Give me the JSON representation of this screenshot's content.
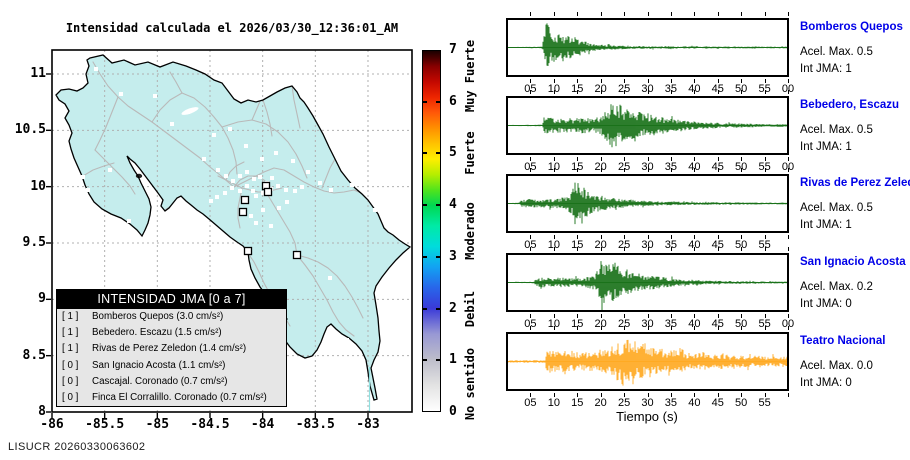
{
  "title": "Intensidad calculada el 2026/03/30_12:36:01_AM",
  "watermark": "LISUCR 20260330063602",
  "map": {
    "x_tick_labels": [
      "-86",
      "-85.5",
      "-85",
      "-84.5",
      "-84",
      "-83.5",
      "-83"
    ],
    "y_tick_labels": [
      "11",
      "10.5",
      "10",
      "9.5",
      "9",
      "8.5",
      "8"
    ],
    "legend": {
      "header": "INTENSIDAD JMA [0 a 7]",
      "items": [
        {
          "tag": "[ 1 ]",
          "text": "Bomberos Quepos (3.0 cm/s²)"
        },
        {
          "tag": "[ 1 ]",
          "text": "Bebedero. Escazu (1.5 cm/s²)"
        },
        {
          "tag": "[ 1 ]",
          "text": "Rivas de Perez Zeledon (1.4 cm/s²)"
        },
        {
          "tag": "[ 0 ]",
          "text": "San Ignacio Acosta (1.1 cm/s²)"
        },
        {
          "tag": "[ 0 ]",
          "text": "Cascajal. Coronado (0.7 cm/s²)"
        },
        {
          "tag": "[ 0 ]",
          "text": "Finca El Corralillo. Coronado (0.7 cm/s²)"
        }
      ]
    },
    "triggered_station_markers": [
      [
        266,
        186
      ],
      [
        268,
        192
      ],
      [
        245,
        200
      ],
      [
        243,
        212
      ],
      [
        248,
        251
      ],
      [
        297,
        255
      ]
    ],
    "station_markers": [
      [
        96,
        69
      ],
      [
        121,
        94
      ],
      [
        155,
        96
      ],
      [
        188,
        112
      ],
      [
        172,
        124
      ],
      [
        214,
        135
      ],
      [
        230,
        129
      ],
      [
        204,
        159
      ],
      [
        246,
        146
      ],
      [
        262,
        159
      ],
      [
        276,
        153
      ],
      [
        293,
        161
      ],
      [
        308,
        172
      ],
      [
        320,
        183
      ],
      [
        331,
        190
      ],
      [
        352,
        185
      ],
      [
        362,
        170
      ],
      [
        218,
        170
      ],
      [
        226,
        176
      ],
      [
        233,
        181
      ],
      [
        240,
        176
      ],
      [
        247,
        172
      ],
      [
        254,
        179
      ],
      [
        260,
        177
      ],
      [
        267,
        183
      ],
      [
        272,
        178
      ],
      [
        247,
        186
      ],
      [
        253,
        191
      ],
      [
        240,
        191
      ],
      [
        232,
        188
      ],
      [
        225,
        193
      ],
      [
        217,
        197
      ],
      [
        211,
        201
      ],
      [
        256,
        196
      ],
      [
        263,
        193
      ],
      [
        271,
        189
      ],
      [
        278,
        186
      ],
      [
        286,
        190
      ],
      [
        295,
        191
      ],
      [
        302,
        187
      ],
      [
        287,
        202
      ],
      [
        279,
        208
      ],
      [
        263,
        210
      ],
      [
        251,
        216
      ],
      [
        256,
        223
      ],
      [
        271,
        226
      ],
      [
        330,
        278
      ],
      [
        347,
        340
      ],
      [
        375,
        210
      ],
      [
        88,
        190
      ],
      [
        129,
        221
      ],
      [
        110,
        170
      ],
      [
        83,
        177
      ]
    ]
  },
  "colorbar": {
    "numbers": [
      {
        "label": "7",
        "v": 7
      },
      {
        "label": "6",
        "v": 6
      },
      {
        "label": "5",
        "v": 5
      },
      {
        "label": "4",
        "v": 4
      },
      {
        "label": "3",
        "v": 3
      },
      {
        "label": "2",
        "v": 2
      },
      {
        "label": "1",
        "v": 1
      },
      {
        "label": "0",
        "v": 0
      }
    ],
    "scale_labels": [
      {
        "text": "Muy Fuerte",
        "v": 6.5
      },
      {
        "text": "Fuerte",
        "v": 5
      },
      {
        "text": "Moderado",
        "v": 3.5
      },
      {
        "text": "Debil",
        "v": 2
      },
      {
        "text": "No sentido",
        "v": 0.55
      }
    ],
    "gradient_stops": [
      [
        0,
        "#ffffff"
      ],
      [
        0.5,
        "#e3e3e3"
      ],
      [
        1,
        "#bdbdca"
      ],
      [
        1.5,
        "#9898d4"
      ],
      [
        2,
        "#3a3ad8"
      ],
      [
        2.4,
        "#2866ea"
      ],
      [
        2.8,
        "#12a2f2"
      ],
      [
        3.2,
        "#00dcdc"
      ],
      [
        3.6,
        "#00eaa6"
      ],
      [
        4,
        "#00d852"
      ],
      [
        4.3,
        "#52e41c"
      ],
      [
        4.6,
        "#b6ee00"
      ],
      [
        4.9,
        "#ffee00"
      ],
      [
        5.2,
        "#ffc200"
      ],
      [
        5.5,
        "#ff8f00"
      ],
      [
        5.8,
        "#ff5808"
      ],
      [
        6.1,
        "#ee2600"
      ],
      [
        6.4,
        "#c40800"
      ],
      [
        6.7,
        "#880000"
      ],
      [
        6.85,
        "#4e0000"
      ],
      [
        7,
        "#1c0000"
      ]
    ]
  },
  "seismograms": {
    "xlabel": "Tiempo (s)",
    "trace_colors": {
      "green": "#156f15",
      "orange": "#ffa81e"
    },
    "panels": [
      {
        "name": "Bomberos Quepos",
        "acel": "Acel. Max. 0.5",
        "jma": "Int JMA: 1",
        "color": "green",
        "ticks": [
          "05",
          "10",
          "15",
          "20",
          "25",
          "30",
          "35",
          "40",
          "45",
          "50",
          "55",
          "00"
        ]
      },
      {
        "name": "Bebedero, Escazu",
        "acel": "Acel. Max. 0.5",
        "jma": "Int JMA: 1",
        "color": "green",
        "ticks": [
          "05",
          "10",
          "15",
          "20",
          "25",
          "30",
          "35",
          "40",
          "45",
          "50",
          "55",
          "00"
        ]
      },
      {
        "name": "Rivas de Perez Zeledon",
        "acel": "Acel. Max. 0.5",
        "jma": "Int JMA: 1",
        "color": "green",
        "ticks": [
          "05",
          "10",
          "15",
          "20",
          "25",
          "30",
          "35",
          "40",
          "45",
          "50",
          "55"
        ]
      },
      {
        "name": "San Ignacio Acosta",
        "acel": "Acel. Max. 0.2",
        "jma": "Int JMA: 0",
        "color": "green",
        "ticks": [
          "05",
          "10",
          "15",
          "20",
          "25",
          "30",
          "35",
          "40",
          "45",
          "50",
          "55",
          "00"
        ]
      },
      {
        "name": "Teatro Nacional",
        "acel": "Acel. Max. 0.0",
        "jma": "Int JMA: 0",
        "color": "orange",
        "ticks": [
          "05",
          "10",
          "15",
          "20",
          "25",
          "30",
          "35",
          "40",
          "45",
          "50",
          "55"
        ]
      }
    ]
  },
  "chart_data": [
    {
      "type": "table",
      "title": "INTENSIDAD JMA [0 a 7]",
      "columns": [
        "int_jma",
        "estacion",
        "aceleracion_cm_s2"
      ],
      "rows": [
        [
          1,
          "Bomberos Quepos",
          3.0
        ],
        [
          1,
          "Bebedero. Escazu",
          1.5
        ],
        [
          1,
          "Rivas de Perez Zeledon",
          1.4
        ],
        [
          0,
          "San Ignacio Acosta",
          1.1
        ],
        [
          0,
          "Cascajal. Coronado",
          0.7
        ],
        [
          0,
          "Finca El Corralillo. Coronado",
          0.7
        ]
      ]
    },
    {
      "type": "line",
      "title": "Bomberos Quepos",
      "xlabel": "Tiempo (s)",
      "x_range": [
        0,
        60
      ],
      "acel_max": 0.5,
      "int_jma": 1,
      "envelope": [
        [
          0,
          0.02
        ],
        [
          7,
          0.03
        ],
        [
          7.6,
          0.08
        ],
        [
          8.2,
          1.0
        ],
        [
          8.8,
          0.9
        ],
        [
          9.5,
          0.6
        ],
        [
          10.5,
          0.5
        ],
        [
          11.5,
          0.62
        ],
        [
          12.5,
          0.48
        ],
        [
          13.5,
          0.42
        ],
        [
          14.5,
          0.38
        ],
        [
          15.5,
          0.33
        ],
        [
          16.5,
          0.25
        ],
        [
          18,
          0.15
        ],
        [
          20,
          0.11
        ],
        [
          23,
          0.08
        ],
        [
          26,
          0.06
        ],
        [
          32,
          0.05
        ],
        [
          45,
          0.04
        ],
        [
          60,
          0.035
        ]
      ]
    },
    {
      "type": "line",
      "title": "Bebedero, Escazu",
      "xlabel": "Tiempo (s)",
      "x_range": [
        0,
        60
      ],
      "acel_max": 0.5,
      "int_jma": 1,
      "envelope": [
        [
          0,
          0.02
        ],
        [
          7.6,
          0.03
        ],
        [
          8,
          0.42
        ],
        [
          8.6,
          0.32
        ],
        [
          10,
          0.28
        ],
        [
          12,
          0.3
        ],
        [
          14,
          0.27
        ],
        [
          16,
          0.3
        ],
        [
          18,
          0.28
        ],
        [
          20,
          0.34
        ],
        [
          21,
          0.55
        ],
        [
          22,
          0.85
        ],
        [
          23,
          1.0
        ],
        [
          23.8,
          0.85
        ],
        [
          25,
          0.7
        ],
        [
          26,
          0.62
        ],
        [
          27,
          0.68
        ],
        [
          28,
          0.55
        ],
        [
          29,
          0.48
        ],
        [
          30,
          0.44
        ],
        [
          32,
          0.36
        ],
        [
          34,
          0.3
        ],
        [
          36,
          0.25
        ],
        [
          38,
          0.2
        ],
        [
          40,
          0.16
        ],
        [
          43,
          0.12
        ],
        [
          47,
          0.09
        ],
        [
          52,
          0.07
        ],
        [
          60,
          0.05
        ]
      ]
    },
    {
      "type": "line",
      "title": "Rivas de Perez Zeledon",
      "xlabel": "Tiempo (s)",
      "x_range": [
        0,
        60
      ],
      "acel_max": 0.5,
      "int_jma": 1,
      "envelope": [
        [
          0,
          0.02
        ],
        [
          2.6,
          0.03
        ],
        [
          3.2,
          0.16
        ],
        [
          5,
          0.18
        ],
        [
          7,
          0.15
        ],
        [
          9,
          0.17
        ],
        [
          11,
          0.2
        ],
        [
          13,
          0.28
        ],
        [
          14,
          0.55
        ],
        [
          14.8,
          1.0
        ],
        [
          15.6,
          0.92
        ],
        [
          16.5,
          0.65
        ],
        [
          17.5,
          0.5
        ],
        [
          18.5,
          0.4
        ],
        [
          19.5,
          0.33
        ],
        [
          21,
          0.27
        ],
        [
          23,
          0.22
        ],
        [
          25,
          0.18
        ],
        [
          27,
          0.14
        ],
        [
          29,
          0.11
        ],
        [
          32,
          0.09
        ],
        [
          36,
          0.07
        ],
        [
          42,
          0.05
        ],
        [
          50,
          0.04
        ],
        [
          60,
          0.035
        ]
      ]
    },
    {
      "type": "line",
      "title": "San Ignacio Acosta",
      "xlabel": "Tiempo (s)",
      "x_range": [
        0,
        60
      ],
      "acel_max": 0.2,
      "int_jma": 0,
      "envelope": [
        [
          0,
          0.02
        ],
        [
          5.6,
          0.03
        ],
        [
          6.2,
          0.17
        ],
        [
          8,
          0.19
        ],
        [
          10,
          0.17
        ],
        [
          12,
          0.19
        ],
        [
          14,
          0.17
        ],
        [
          16,
          0.19
        ],
        [
          18,
          0.24
        ],
        [
          19,
          0.4
        ],
        [
          19.8,
          0.75
        ],
        [
          20.4,
          1.0
        ],
        [
          21.2,
          0.68
        ],
        [
          22,
          0.72
        ],
        [
          23,
          0.78
        ],
        [
          24,
          0.6
        ],
        [
          25,
          0.5
        ],
        [
          26,
          0.44
        ],
        [
          28,
          0.35
        ],
        [
          30,
          0.29
        ],
        [
          32,
          0.24
        ],
        [
          34,
          0.19
        ],
        [
          36,
          0.15
        ],
        [
          38,
          0.12
        ],
        [
          40,
          0.1
        ],
        [
          44,
          0.07
        ],
        [
          50,
          0.05
        ],
        [
          60,
          0.035
        ]
      ]
    },
    {
      "type": "line",
      "title": "Teatro Nacional",
      "xlabel": "Tiempo (s)",
      "x_range": [
        0,
        60
      ],
      "acel_max": 0.0,
      "int_jma": 0,
      "envelope": [
        [
          0,
          0.045
        ],
        [
          8.2,
          0.05
        ],
        [
          8.6,
          0.5
        ],
        [
          9.4,
          0.42
        ],
        [
          11,
          0.4
        ],
        [
          13,
          0.42
        ],
        [
          15,
          0.36
        ],
        [
          17,
          0.35
        ],
        [
          19,
          0.38
        ],
        [
          21,
          0.45
        ],
        [
          22,
          0.6
        ],
        [
          23,
          0.8
        ],
        [
          24,
          0.72
        ],
        [
          25,
          1.0
        ],
        [
          26,
          0.82
        ],
        [
          27,
          0.95
        ],
        [
          28,
          0.78
        ],
        [
          29,
          0.68
        ],
        [
          30,
          0.74
        ],
        [
          31,
          0.55
        ],
        [
          32,
          0.46
        ],
        [
          33,
          0.52
        ],
        [
          34,
          0.42
        ],
        [
          36,
          0.46
        ],
        [
          38,
          0.36
        ],
        [
          40,
          0.3
        ],
        [
          42,
          0.35
        ],
        [
          44,
          0.26
        ],
        [
          46,
          0.3
        ],
        [
          48,
          0.23
        ],
        [
          50,
          0.26
        ],
        [
          52,
          0.21
        ],
        [
          54,
          0.23
        ],
        [
          56,
          0.2
        ],
        [
          58,
          0.19
        ],
        [
          60,
          0.18
        ]
      ]
    }
  ]
}
